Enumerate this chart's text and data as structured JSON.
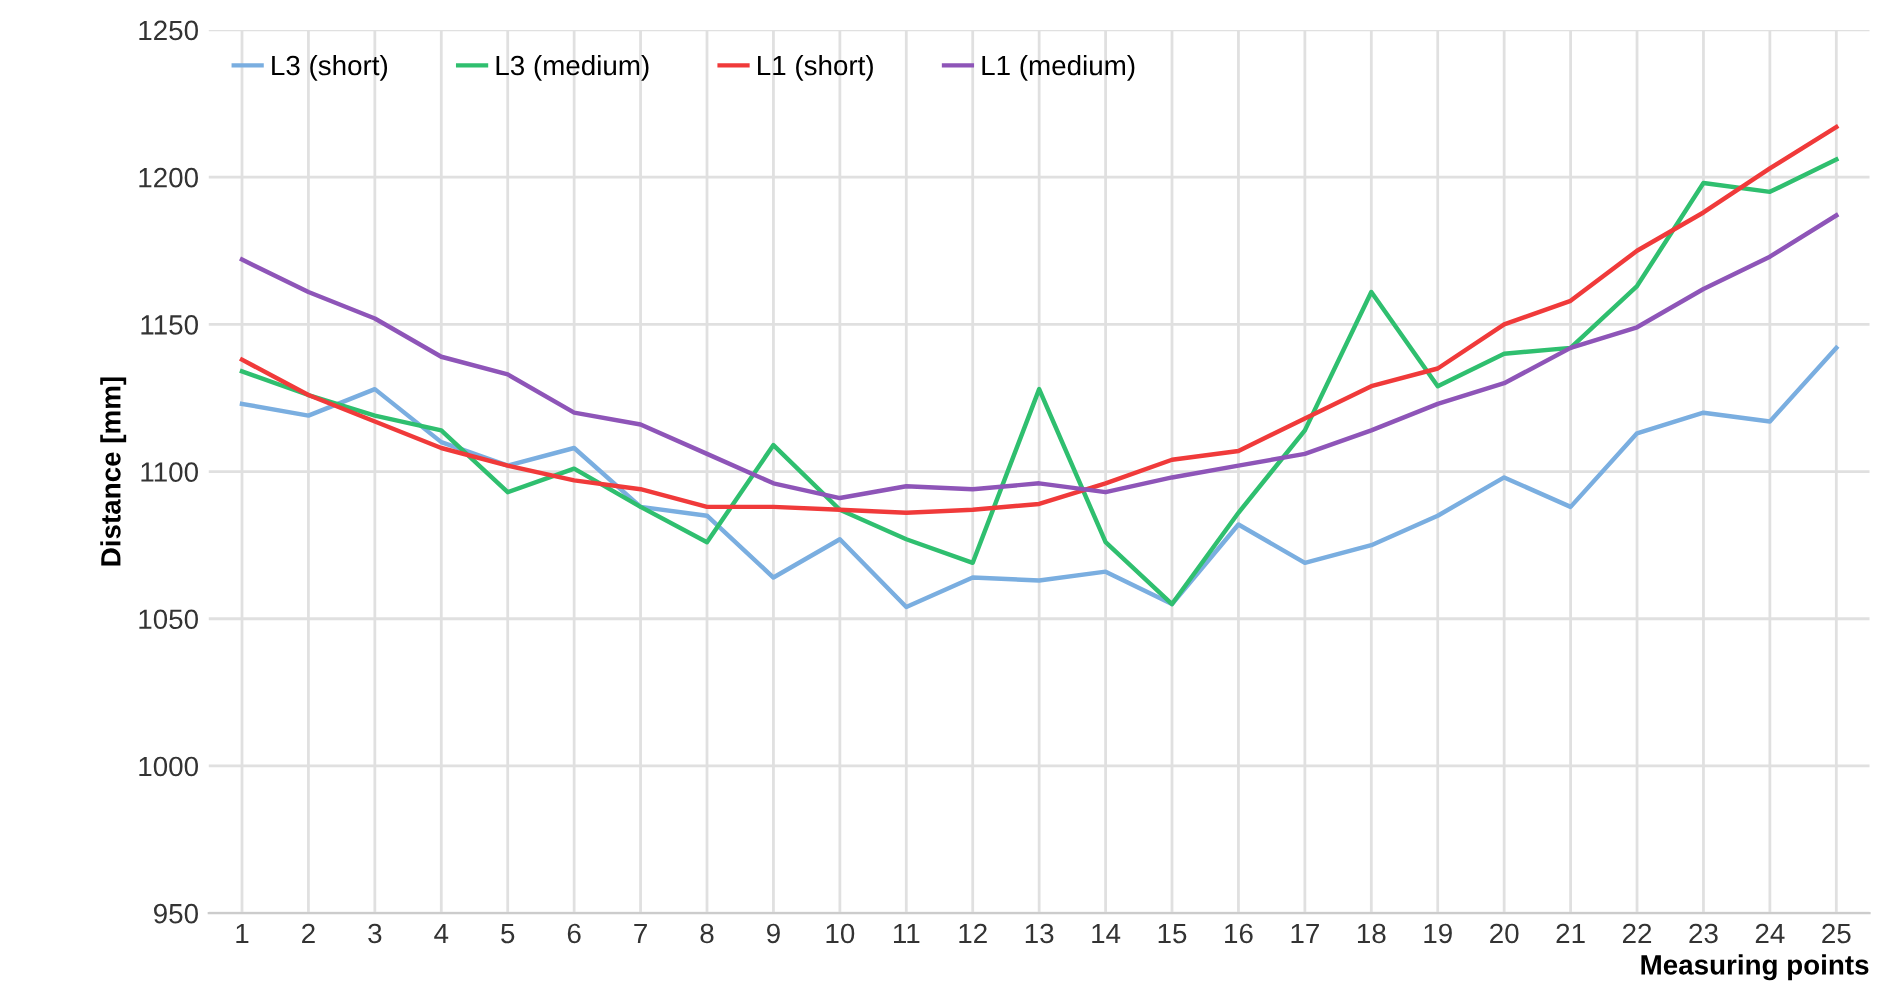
{
  "chart_data": {
    "type": "line",
    "xlabel": "Measuring points",
    "ylabel": "Distance [mm]",
    "categories": [
      "1",
      "2",
      "3",
      "4",
      "5",
      "6",
      "7",
      "8",
      "9",
      "10",
      "11",
      "12",
      "13",
      "14",
      "15",
      "16",
      "17",
      "18",
      "19",
      "20",
      "21",
      "22",
      "23",
      "24",
      "25"
    ],
    "series": [
      {
        "name": "L3 (short)",
        "color": "#7aaee0",
        "values": [
          1123,
          1119,
          1128,
          1110,
          1102,
          1108,
          1088,
          1085,
          1064,
          1077,
          1054,
          1064,
          1063,
          1066,
          1055,
          1082,
          1069,
          1075,
          1085,
          1098,
          1088,
          1113,
          1120,
          1117,
          1142
        ]
      },
      {
        "name": "L3 (medium)",
        "color": "#2fbf6f",
        "values": [
          1134,
          1126,
          1119,
          1114,
          1093,
          1101,
          1088,
          1076,
          1109,
          1087,
          1077,
          1069,
          1128,
          1076,
          1055,
          1086,
          1114,
          1161,
          1129,
          1140,
          1142,
          1163,
          1198,
          1195,
          1206
        ]
      },
      {
        "name": "L1 (short)",
        "color": "#f03a3a",
        "values": [
          1138,
          1126,
          1117,
          1108,
          1102,
          1097,
          1094,
          1088,
          1088,
          1087,
          1086,
          1087,
          1089,
          1096,
          1104,
          1107,
          1118,
          1129,
          1135,
          1150,
          1158,
          1175,
          1188,
          1203,
          1217
        ]
      },
      {
        "name": "L1 (medium)",
        "color": "#8e55b8",
        "values": [
          1172,
          1161,
          1152,
          1139,
          1133,
          1120,
          1116,
          1106,
          1096,
          1091,
          1095,
          1094,
          1096,
          1093,
          1098,
          1102,
          1106,
          1114,
          1123,
          1130,
          1142,
          1149,
          1162,
          1173,
          1187
        ]
      }
    ],
    "ylim": [
      950,
      1250
    ],
    "yticks": [
      950,
      1000,
      1050,
      1100,
      1150,
      1200,
      1250
    ],
    "grid": true,
    "legend": "top left",
    "marker": "none",
    "line_style": "solid"
  }
}
